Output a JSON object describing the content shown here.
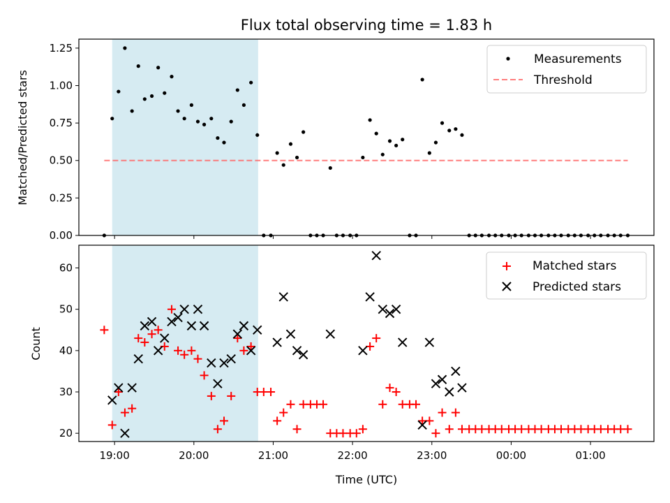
{
  "chart_data": [
    {
      "type": "scatter",
      "title": "Flux total observing time = 1.83 h",
      "xlabel": "",
      "ylabel": "Matched/Predicted stars",
      "xlim": [
        18.55,
        25.8
      ],
      "ylim": [
        0,
        1.31
      ],
      "xticks": [
        19,
        20,
        21,
        22,
        23,
        24,
        25
      ],
      "yticks": [
        "0.00",
        "0.25",
        "0.50",
        "0.75",
        "1.00",
        "1.25"
      ],
      "shaded_span": [
        18.97,
        20.81
      ],
      "legend": "top-right",
      "series": [
        {
          "name": "Measurements",
          "x": [
            18.87,
            18.97,
            19.05,
            19.13,
            19.22,
            19.3,
            19.38,
            19.47,
            19.55,
            19.63,
            19.72,
            19.8,
            19.88,
            19.97,
            20.05,
            20.13,
            20.22,
            20.3,
            20.38,
            20.47,
            20.55,
            20.63,
            20.72,
            20.8,
            20.88,
            20.97,
            21.05,
            21.13,
            21.22,
            21.3,
            21.38,
            21.47,
            21.55,
            21.63,
            21.72,
            21.8,
            21.88,
            21.97,
            22.05,
            22.13,
            22.22,
            22.3,
            22.38,
            22.47,
            22.55,
            22.63,
            22.72,
            22.8,
            22.88,
            22.97,
            23.05,
            23.13,
            23.22,
            23.3,
            23.38,
            23.47,
            23.55,
            23.63,
            23.72,
            23.8,
            23.88,
            23.97,
            24.05,
            24.13,
            24.22,
            24.3,
            24.38,
            24.47,
            24.55,
            24.63,
            24.72,
            24.8,
            24.88,
            24.97,
            25.05,
            25.13,
            25.22,
            25.3,
            25.38,
            25.47
          ],
          "y": [
            0.0,
            0.78,
            0.96,
            1.25,
            0.83,
            1.13,
            0.91,
            0.93,
            1.12,
            0.95,
            1.06,
            0.83,
            0.78,
            0.87,
            0.76,
            0.74,
            0.78,
            0.65,
            0.62,
            0.76,
            0.97,
            0.87,
            1.02,
            0.67,
            0.0,
            0.0,
            0.55,
            0.47,
            0.61,
            0.52,
            0.69,
            0.0,
            0.0,
            0.0,
            0.45,
            0.0,
            0.0,
            0.0,
            0.0,
            0.52,
            0.77,
            0.68,
            0.54,
            0.63,
            0.6,
            0.64,
            0.0,
            0.0,
            1.04,
            0.55,
            0.62,
            0.75,
            0.7,
            0.71,
            0.67,
            0.0,
            0.0,
            0.0,
            0.0,
            0.0,
            0.0,
            0.0,
            0.0,
            0.0,
            0.0,
            0.0,
            0.0,
            0.0,
            0.0,
            0.0,
            0.0,
            0.0,
            0.0,
            0.0,
            0.0,
            0.0,
            0.0,
            0.0,
            0.0,
            0.0
          ],
          "color": "#000000"
        },
        {
          "name": "Threshold",
          "x": [
            18.87,
            25.47
          ],
          "y": [
            0.5,
            0.5
          ],
          "color": "#ff6666",
          "style": "dashed"
        }
      ]
    },
    {
      "type": "scatter",
      "title": "",
      "xlabel": "Time (UTC)",
      "ylabel": "Count",
      "xlim": [
        18.55,
        25.8
      ],
      "ylim": [
        18,
        65.5
      ],
      "xticks": [
        19,
        20,
        21,
        22,
        23,
        24,
        25
      ],
      "xticklabels": [
        "19:00",
        "20:00",
        "21:00",
        "22:00",
        "23:00",
        "00:00",
        "01:00"
      ],
      "yticks": [
        "20",
        "30",
        "40",
        "50",
        "60"
      ],
      "shaded_span": [
        18.97,
        20.81
      ],
      "legend": "top-right",
      "series": [
        {
          "name": "Matched stars",
          "marker": "+",
          "color": "#ff0000",
          "x": [
            18.87,
            18.97,
            19.05,
            19.13,
            19.22,
            19.3,
            19.38,
            19.47,
            19.55,
            19.63,
            19.72,
            19.8,
            19.88,
            19.97,
            20.05,
            20.13,
            20.22,
            20.3,
            20.38,
            20.47,
            20.55,
            20.63,
            20.72,
            20.8,
            20.88,
            20.97,
            21.05,
            21.13,
            21.22,
            21.3,
            21.38,
            21.47,
            21.55,
            21.63,
            21.72,
            21.8,
            21.88,
            21.97,
            22.05,
            22.13,
            22.22,
            22.3,
            22.38,
            22.47,
            22.55,
            22.63,
            22.72,
            22.8,
            22.88,
            22.97,
            23.05,
            23.13,
            23.22,
            23.3,
            23.38,
            23.47,
            23.55,
            23.63,
            23.72,
            23.8,
            23.88,
            23.97,
            24.05,
            24.13,
            24.22,
            24.3,
            24.38,
            24.47,
            24.55,
            24.63,
            24.72,
            24.8,
            24.88,
            24.97,
            25.05,
            25.13,
            25.22,
            25.3,
            25.38,
            25.47
          ],
          "y": [
            45,
            22,
            30,
            25,
            26,
            43,
            42,
            44,
            45,
            41,
            50,
            40,
            39,
            40,
            38,
            34,
            29,
            21,
            23,
            29,
            43,
            40,
            41,
            30,
            30,
            30,
            23,
            25,
            27,
            21,
            27,
            27,
            27,
            27,
            20,
            20,
            20,
            20,
            20,
            21,
            41,
            43,
            27,
            31,
            30,
            27,
            27,
            27,
            23,
            23,
            20,
            25,
            21,
            25,
            21,
            21,
            21,
            21,
            21,
            21,
            21,
            21,
            21,
            21,
            21,
            21,
            21,
            21,
            21,
            21,
            21,
            21,
            21,
            21,
            21,
            21,
            21,
            21,
            21,
            21
          ]
        },
        {
          "name": "Predicted stars",
          "marker": "x",
          "color": "#000000",
          "x": [
            18.97,
            19.05,
            19.13,
            19.22,
            19.3,
            19.38,
            19.47,
            19.55,
            19.63,
            19.72,
            19.8,
            19.88,
            19.97,
            20.05,
            20.13,
            20.22,
            20.3,
            20.38,
            20.47,
            20.55,
            20.63,
            20.72,
            20.8,
            21.05,
            21.13,
            21.22,
            21.3,
            21.38,
            21.72,
            22.13,
            22.22,
            22.3,
            22.38,
            22.47,
            22.55,
            22.63,
            22.88,
            22.97,
            23.05,
            23.13,
            23.22,
            23.3,
            23.38
          ],
          "y": [
            28,
            31,
            20,
            31,
            38,
            46,
            47,
            40,
            43,
            47,
            48,
            50,
            46,
            50,
            46,
            37,
            32,
            37,
            38,
            44,
            46,
            40,
            45,
            42,
            53,
            44,
            40,
            39,
            44,
            40,
            53,
            63,
            50,
            49,
            50,
            42,
            22,
            42,
            32,
            33,
            30,
            35,
            31
          ]
        }
      ]
    }
  ]
}
